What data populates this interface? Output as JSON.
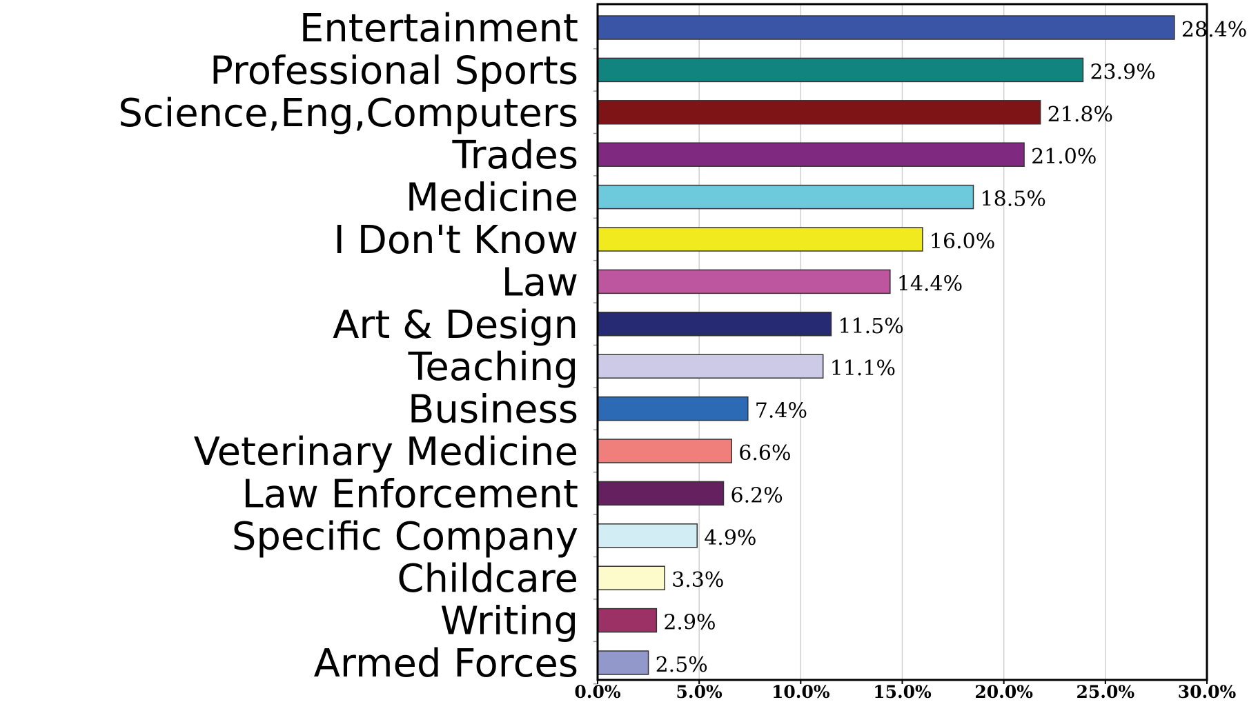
{
  "chart_data": {
    "type": "bar",
    "orientation": "horizontal",
    "title": "",
    "xlabel": "",
    "ylabel": "",
    "xlim": [
      0,
      30
    ],
    "x_ticks": [
      "0.0%",
      "5.0%",
      "10.0%",
      "15.0%",
      "20.0%",
      "25.0%",
      "30.0%"
    ],
    "grid": true,
    "categories": [
      "Entertainment",
      "Professional Sports",
      "Science,Eng,Computers",
      "Trades",
      "Medicine",
      "I Don't Know",
      "Law",
      "Art & Design",
      "Teaching",
      "Business",
      "Veterinary Medicine",
      "Law Enforcement",
      "Specific Company",
      "Childcare",
      "Writing",
      "Armed Forces"
    ],
    "values": [
      28.4,
      23.9,
      21.8,
      21.0,
      18.5,
      16.0,
      14.4,
      11.5,
      11.1,
      7.4,
      6.6,
      6.2,
      4.9,
      3.3,
      2.9,
      2.5
    ],
    "value_labels": [
      "28.4%",
      "23.9%",
      "21.8%",
      "21.0%",
      "18.5%",
      "16.0%",
      "14.4%",
      "11.5%",
      "11.1%",
      "7.4%",
      "6.6%",
      "6.2%",
      "4.9%",
      "3.3%",
      "2.9%",
      "2.5%"
    ],
    "bar_colors": [
      "#3a55a6",
      "#128480",
      "#7f1416",
      "#7f2a80",
      "#6ccadc",
      "#f1ea1e",
      "#bd569f",
      "#262a72",
      "#cccae6",
      "#2d6ab5",
      "#f07f7c",
      "#64205f",
      "#d3edf5",
      "#fdfbcb",
      "#9c3165",
      "#9298c9"
    ]
  }
}
